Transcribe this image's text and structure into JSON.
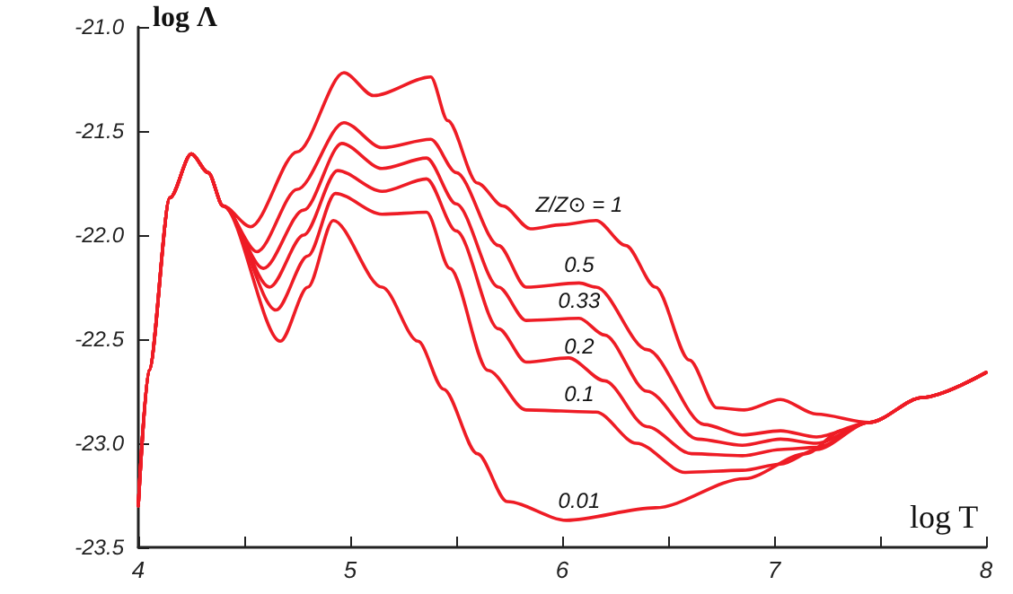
{
  "chart_data": {
    "type": "line",
    "xlabel": "log T",
    "ylabel": "log Λ",
    "xlim": [
      4,
      8
    ],
    "ylim": [
      -23.5,
      -21.0
    ],
    "xticks": [
      4,
      {
        "value": 4.5,
        "label": null
      },
      5,
      {
        "value": 5.5,
        "label": null
      },
      6,
      {
        "value": 6.5,
        "label": null
      },
      7,
      {
        "value": 7.5,
        "label": null
      },
      8
    ],
    "yticks": [
      {
        "value": -23.5,
        "label": "-23.5"
      },
      {
        "value": -23.0,
        "label": "-23.0"
      },
      {
        "value": -22.5,
        "label": "-22.5"
      },
      {
        "value": -22.0,
        "label": "-22.0"
      },
      {
        "value": -21.5,
        "label": "-21.5"
      },
      {
        "value": -21.0,
        "label": "-21.0"
      }
    ],
    "grid": false,
    "marker": "none",
    "line_style": "solid",
    "series": [
      {
        "name": "Z/Z⊙ = 1",
        "color": "#ee1c25",
        "x": [
          4,
          4.05,
          4.15,
          4.25,
          4.33,
          4.4,
          4.53,
          4.75,
          4.97,
          5.11,
          5.38,
          5.46,
          5.6,
          5.72,
          5.85,
          6.0,
          6.16,
          6.3,
          6.44,
          6.6,
          6.73,
          6.86,
          7.03,
          7.2,
          7.45,
          7.7,
          8
        ],
        "values": [
          -23.3,
          -22.65,
          -21.82,
          -21.61,
          -21.7,
          -21.86,
          -21.96,
          -21.6,
          -21.22,
          -21.33,
          -21.24,
          -21.45,
          -21.75,
          -21.86,
          -21.97,
          -21.95,
          -21.93,
          -22.05,
          -22.25,
          -22.6,
          -22.83,
          -22.84,
          -22.79,
          -22.86,
          -22.9,
          -22.78,
          -22.66
        ]
      },
      {
        "name": "0.5",
        "color": "#ee1c25",
        "x": [
          4,
          4.05,
          4.15,
          4.25,
          4.33,
          4.4,
          4.56,
          4.75,
          4.97,
          5.15,
          5.38,
          5.5,
          5.7,
          5.83,
          6.08,
          6.16,
          6.4,
          6.67,
          6.85,
          7.03,
          7.2,
          7.45,
          7.7,
          8
        ],
        "values": [
          -23.3,
          -22.65,
          -21.82,
          -21.61,
          -21.7,
          -21.86,
          -22.08,
          -21.78,
          -21.46,
          -21.58,
          -21.54,
          -21.7,
          -22.05,
          -22.25,
          -22.23,
          -22.25,
          -22.55,
          -22.91,
          -22.96,
          -22.94,
          -22.97,
          -22.9,
          -22.78,
          -22.66
        ]
      },
      {
        "name": "0.33",
        "color": "#ee1c25",
        "x": [
          4,
          4.05,
          4.15,
          4.25,
          4.33,
          4.4,
          4.59,
          4.78,
          4.96,
          5.15,
          5.36,
          5.5,
          5.7,
          5.83,
          6.08,
          6.2,
          6.4,
          6.64,
          6.85,
          7.03,
          7.2,
          7.45,
          7.7,
          8
        ],
        "values": [
          -23.3,
          -22.65,
          -21.82,
          -21.61,
          -21.7,
          -21.86,
          -22.16,
          -21.88,
          -21.56,
          -21.68,
          -21.63,
          -21.85,
          -22.25,
          -22.41,
          -22.4,
          -22.48,
          -22.75,
          -22.98,
          -23.01,
          -22.98,
          -23.0,
          -22.9,
          -22.78,
          -22.66
        ]
      },
      {
        "name": "0.2",
        "color": "#ee1c25",
        "x": [
          4,
          4.05,
          4.15,
          4.25,
          4.33,
          4.4,
          4.62,
          4.78,
          4.94,
          5.15,
          5.36,
          5.5,
          5.7,
          5.83,
          6.03,
          6.2,
          6.4,
          6.61,
          6.85,
          7.03,
          7.2,
          7.45,
          7.7,
          8
        ],
        "values": [
          -23.3,
          -22.65,
          -21.82,
          -21.61,
          -21.7,
          -21.86,
          -22.25,
          -22.0,
          -21.69,
          -21.79,
          -21.73,
          -21.98,
          -22.45,
          -22.61,
          -22.59,
          -22.7,
          -22.92,
          -23.05,
          -23.06,
          -23.03,
          -23.02,
          -22.9,
          -22.78,
          -22.66
        ]
      },
      {
        "name": "0.1",
        "color": "#ee1c25",
        "x": [
          4,
          4.05,
          4.15,
          4.25,
          4.33,
          4.4,
          4.65,
          4.8,
          4.93,
          5.15,
          5.36,
          5.47,
          5.65,
          5.83,
          6.16,
          6.35,
          6.58,
          6.85,
          7.03,
          7.2,
          7.45,
          7.7,
          8
        ],
        "values": [
          -23.3,
          -22.65,
          -21.82,
          -21.61,
          -21.7,
          -21.86,
          -22.36,
          -22.1,
          -21.8,
          -21.9,
          -21.89,
          -22.16,
          -22.65,
          -22.84,
          -22.85,
          -23.0,
          -23.14,
          -23.13,
          -23.1,
          -23.03,
          -22.9,
          -22.78,
          -22.66
        ]
      },
      {
        "name": "0.01",
        "color": "#ee1c25",
        "x": [
          4,
          4.05,
          4.15,
          4.25,
          4.33,
          4.4,
          4.67,
          4.8,
          4.92,
          5.15,
          5.32,
          5.44,
          5.6,
          5.74,
          6.02,
          6.44,
          6.86,
          7.15,
          7.32,
          7.45,
          7.7,
          8
        ],
        "values": [
          -23.3,
          -22.65,
          -21.82,
          -21.61,
          -21.7,
          -21.86,
          -22.51,
          -22.25,
          -21.93,
          -22.25,
          -22.51,
          -22.74,
          -23.05,
          -23.28,
          -23.37,
          -23.31,
          -23.17,
          -23.05,
          -22.94,
          -22.9,
          -22.78,
          -22.66
        ]
      }
    ]
  }
}
